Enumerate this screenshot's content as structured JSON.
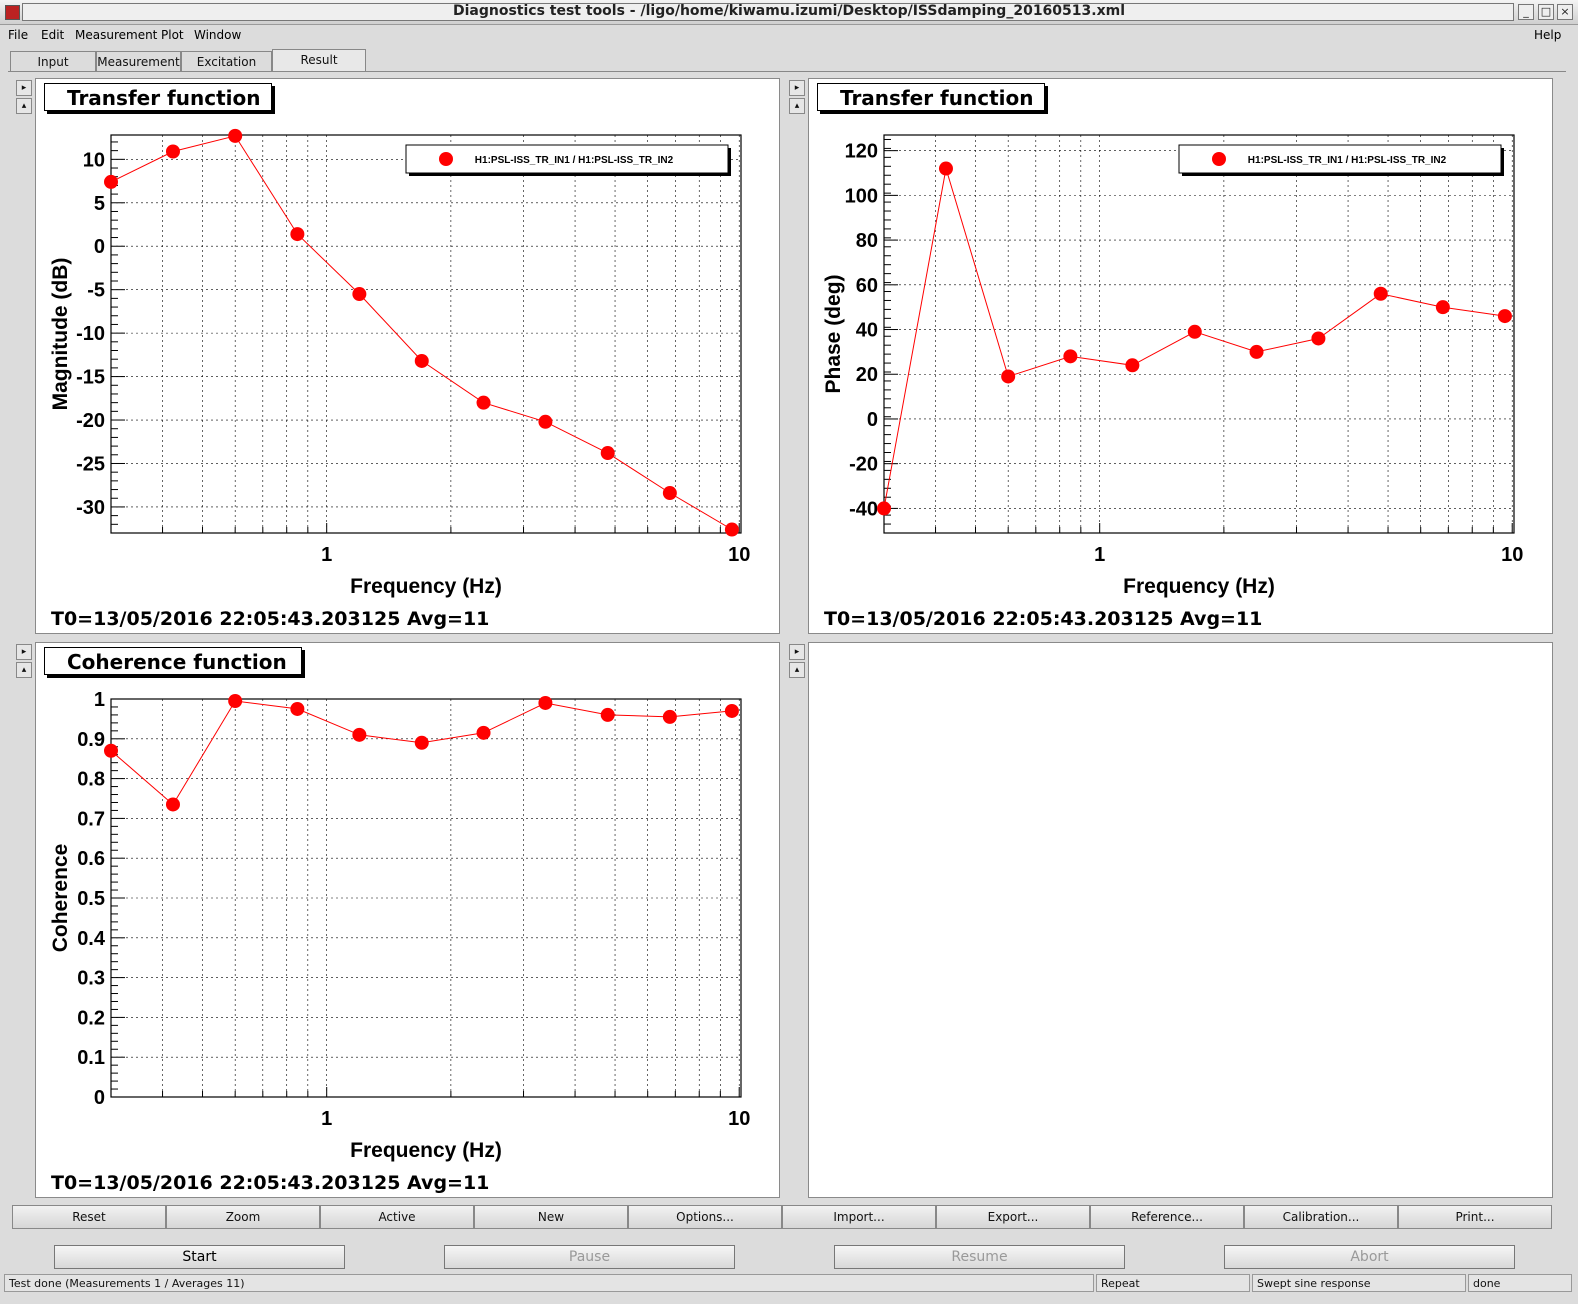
{
  "window": {
    "title": "Diagnostics test tools - /ligo/home/kiwamu.izumi/Desktop/ISSdamping_20160513.xml"
  },
  "menu": {
    "file": "File",
    "edit": "Edit",
    "measurement": "Measurement",
    "plot": "Plot",
    "window": "Window",
    "help": "Help"
  },
  "tabs": {
    "input": "Input",
    "measurement": "Measurement",
    "excitation": "Excitation",
    "result": "Result"
  },
  "panels": [
    {
      "title": "Transfer function",
      "info": "T0=13/05/2016 22:05:43.203125   Avg=11"
    },
    {
      "title": "Transfer function",
      "info": "T0=13/05/2016 22:05:43.203125   Avg=11"
    },
    {
      "title": "Coherence function",
      "info": "T0=13/05/2016 22:05:43.203125   Avg=11"
    }
  ],
  "chart_data": [
    {
      "type": "line",
      "xscale": "log",
      "x": [
        0.3,
        0.424,
        0.6,
        0.849,
        1.2,
        1.7,
        2.4,
        3.39,
        4.8,
        6.79,
        9.6
      ],
      "series": [
        {
          "name": "H1:PSL-ISS_TR_IN1 / H1:PSL-ISS_TR_IN2",
          "values": [
            7.4,
            10.9,
            12.7,
            1.4,
            -5.5,
            -13.2,
            -18.0,
            -20.2,
            -23.8,
            -28.4,
            -32.6
          ],
          "color": "#ff0000"
        }
      ],
      "xlabel": "Frequency (Hz)",
      "ylabel": "Magnitude (dB)",
      "xticks": [
        "1",
        "10"
      ],
      "yticks": [
        "10",
        "5",
        "0",
        "-5",
        "-10",
        "-15",
        "-20",
        "-25",
        "-30"
      ],
      "ylim": [
        -33,
        12.8
      ],
      "xlim": [
        0.3,
        10.1
      ],
      "grid": true,
      "legend": "top-right"
    },
    {
      "type": "line",
      "xscale": "log",
      "x": [
        0.3,
        0.424,
        0.6,
        0.849,
        1.2,
        1.7,
        2.4,
        3.39,
        4.8,
        6.79,
        9.6
      ],
      "series": [
        {
          "name": "H1:PSL-ISS_TR_IN1 / H1:PSL-ISS_TR_IN2",
          "values": [
            -40,
            112,
            19,
            28,
            24,
            39,
            30,
            36,
            56,
            50,
            46
          ],
          "color": "#ff0000"
        }
      ],
      "xlabel": "Frequency (Hz)",
      "ylabel": "Phase (deg)",
      "xticks": [
        "1",
        "10"
      ],
      "yticks": [
        "120",
        "100",
        "80",
        "60",
        "40",
        "20",
        "0",
        "-20",
        "-40"
      ],
      "ylim": [
        -51,
        127
      ],
      "xlim": [
        0.3,
        10.1
      ],
      "grid": true,
      "legend": "top-right"
    },
    {
      "type": "line",
      "xscale": "log",
      "x": [
        0.3,
        0.424,
        0.6,
        0.849,
        1.2,
        1.7,
        2.4,
        3.39,
        4.8,
        6.79,
        9.6
      ],
      "series": [
        {
          "values": [
            0.87,
            0.735,
            0.995,
            0.975,
            0.91,
            0.89,
            0.915,
            0.99,
            0.96,
            0.955,
            0.97
          ],
          "color": "#ff0000"
        }
      ],
      "xlabel": "Frequency (Hz)",
      "ylabel": "Coherence",
      "xticks": [
        "1",
        "10"
      ],
      "yticks": [
        "1",
        "0.9",
        "0.8",
        "0.7",
        "0.6",
        "0.5",
        "0.4",
        "0.3",
        "0.2",
        "0.1",
        "0"
      ],
      "ylim": [
        0,
        1
      ],
      "xlim": [
        0.3,
        10.1
      ],
      "grid": true
    }
  ],
  "toolbar": {
    "reset": "Reset",
    "zoom": "Zoom",
    "active": "Active",
    "new": "New",
    "options": "Options...",
    "import": "Import...",
    "export": "Export...",
    "reference": "Reference...",
    "calibration": "Calibration...",
    "print": "Print..."
  },
  "controls": {
    "start": "Start",
    "pause": "Pause",
    "resume": "Resume",
    "abort": "Abort"
  },
  "status": {
    "message": "Test done (Measurements 1 / Averages 11)",
    "mode": "Repeat",
    "type": "Swept sine response",
    "state": "done"
  }
}
